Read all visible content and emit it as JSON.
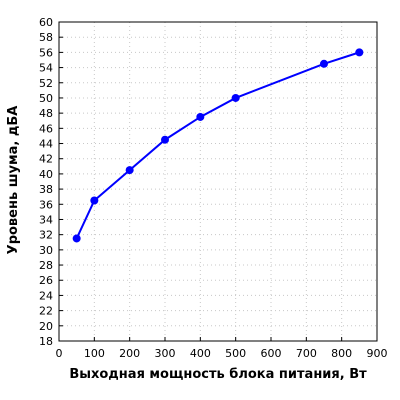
{
  "chart_data": {
    "type": "line",
    "xlabel": "Выходная мощность блока питания, Вт",
    "ylabel": "Уровень шума, дБА",
    "xlim": [
      0,
      900
    ],
    "ylim": [
      18,
      60
    ],
    "x_ticks": [
      0,
      100,
      200,
      300,
      400,
      500,
      600,
      700,
      800,
      900
    ],
    "y_ticks": [
      18,
      20,
      22,
      24,
      26,
      28,
      30,
      32,
      34,
      36,
      38,
      40,
      42,
      44,
      46,
      48,
      50,
      52,
      54,
      56,
      58,
      60
    ],
    "grid": true,
    "series": [
      {
        "color": "#0000ff",
        "points": [
          {
            "x": 50,
            "y": 31.5
          },
          {
            "x": 100,
            "y": 36.5
          },
          {
            "x": 200,
            "y": 40.5
          },
          {
            "x": 300,
            "y": 44.5
          },
          {
            "x": 400,
            "y": 47.5
          },
          {
            "x": 500,
            "y": 50
          },
          {
            "x": 750,
            "y": 54.5
          },
          {
            "x": 850,
            "y": 56
          }
        ]
      }
    ]
  }
}
